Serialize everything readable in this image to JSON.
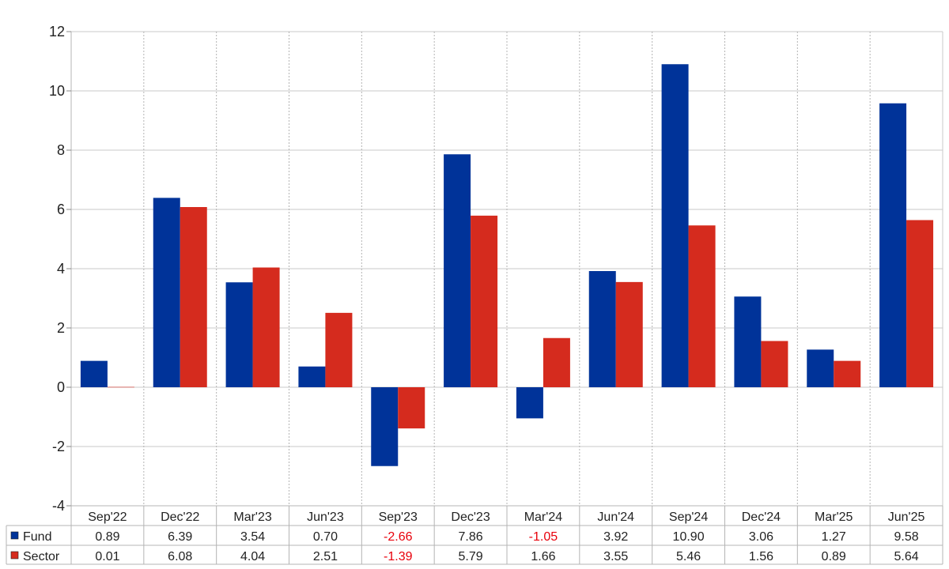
{
  "chart_data": {
    "type": "bar",
    "categories": [
      "Sep'22",
      "Dec'22",
      "Mar'23",
      "Jun'23",
      "Sep'23",
      "Dec'23",
      "Mar'24",
      "Jun'24",
      "Sep'24",
      "Dec'24",
      "Mar'25",
      "Jun'25"
    ],
    "series": [
      {
        "name": "Fund",
        "color": "#003399",
        "values": [
          0.89,
          6.39,
          3.54,
          0.7,
          -2.66,
          7.86,
          -1.05,
          3.92,
          10.9,
          3.06,
          1.27,
          9.58
        ],
        "labels": [
          "0.89",
          "6.39",
          "3.54",
          "0.70",
          "-2.66",
          "7.86",
          "-1.05",
          "3.92",
          "10.90",
          "3.06",
          "1.27",
          "9.58"
        ]
      },
      {
        "name": "Sector",
        "color": "#d52b1e",
        "values": [
          0.01,
          6.08,
          4.04,
          2.51,
          -1.39,
          5.79,
          1.66,
          3.55,
          5.46,
          1.56,
          0.89,
          5.64
        ],
        "labels": [
          "0.01",
          "6.08",
          "4.04",
          "2.51",
          "-1.39",
          "5.79",
          "1.66",
          "3.55",
          "5.46",
          "1.56",
          "0.89",
          "5.64"
        ]
      }
    ],
    "ylim": [
      -4,
      12
    ],
    "yticks": [
      "-4",
      "-2",
      "0",
      "2",
      "4",
      "6",
      "8",
      "10",
      "12"
    ],
    "negative_color": "#e8000b",
    "grid": true,
    "legend": "data-table-left"
  }
}
